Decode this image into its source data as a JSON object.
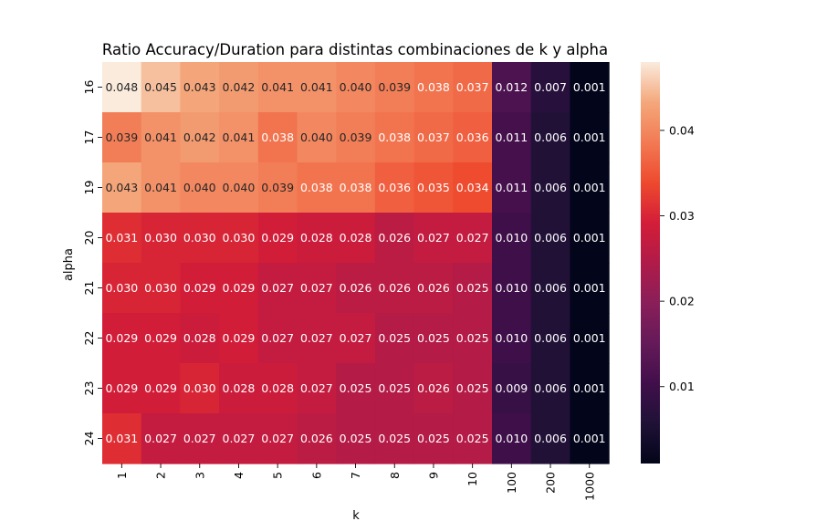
{
  "chart_data": {
    "type": "heatmap",
    "title": "Ratio Accuracy/Duration para distintas combinaciones de k y alpha",
    "xlabel": "k",
    "ylabel": "alpha",
    "x_categories": [
      "1",
      "2",
      "3",
      "4",
      "5",
      "6",
      "7",
      "8",
      "9",
      "10",
      "100",
      "200",
      "1000"
    ],
    "y_categories": [
      "16",
      "17",
      "19",
      "20",
      "21",
      "22",
      "23",
      "24"
    ],
    "values": [
      [
        0.048,
        0.045,
        0.043,
        0.042,
        0.041,
        0.041,
        0.04,
        0.039,
        0.038,
        0.037,
        0.012,
        0.007,
        0.001
      ],
      [
        0.039,
        0.041,
        0.042,
        0.041,
        0.038,
        0.04,
        0.039,
        0.038,
        0.037,
        0.036,
        0.011,
        0.006,
        0.001
      ],
      [
        0.043,
        0.041,
        0.04,
        0.04,
        0.039,
        0.038,
        0.038,
        0.036,
        0.035,
        0.034,
        0.011,
        0.006,
        0.001
      ],
      [
        0.031,
        0.03,
        0.03,
        0.03,
        0.029,
        0.028,
        0.028,
        0.026,
        0.027,
        0.027,
        0.01,
        0.006,
        0.001
      ],
      [
        0.03,
        0.03,
        0.029,
        0.029,
        0.027,
        0.027,
        0.026,
        0.026,
        0.026,
        0.025,
        0.01,
        0.006,
        0.001
      ],
      [
        0.029,
        0.029,
        0.028,
        0.029,
        0.027,
        0.027,
        0.027,
        0.025,
        0.025,
        0.025,
        0.01,
        0.006,
        0.001
      ],
      [
        0.029,
        0.029,
        0.03,
        0.028,
        0.028,
        0.027,
        0.025,
        0.025,
        0.026,
        0.025,
        0.009,
        0.006,
        0.001
      ],
      [
        0.031,
        0.027,
        0.027,
        0.027,
        0.027,
        0.026,
        0.025,
        0.025,
        0.025,
        0.025,
        0.01,
        0.006,
        0.001
      ]
    ],
    "colorbar": {
      "range": [
        0.001,
        0.048
      ],
      "ticks": [
        "0.01",
        "0.02",
        "0.03",
        "0.04"
      ],
      "colormap": "rocket",
      "placement": "right"
    },
    "grid": false
  }
}
